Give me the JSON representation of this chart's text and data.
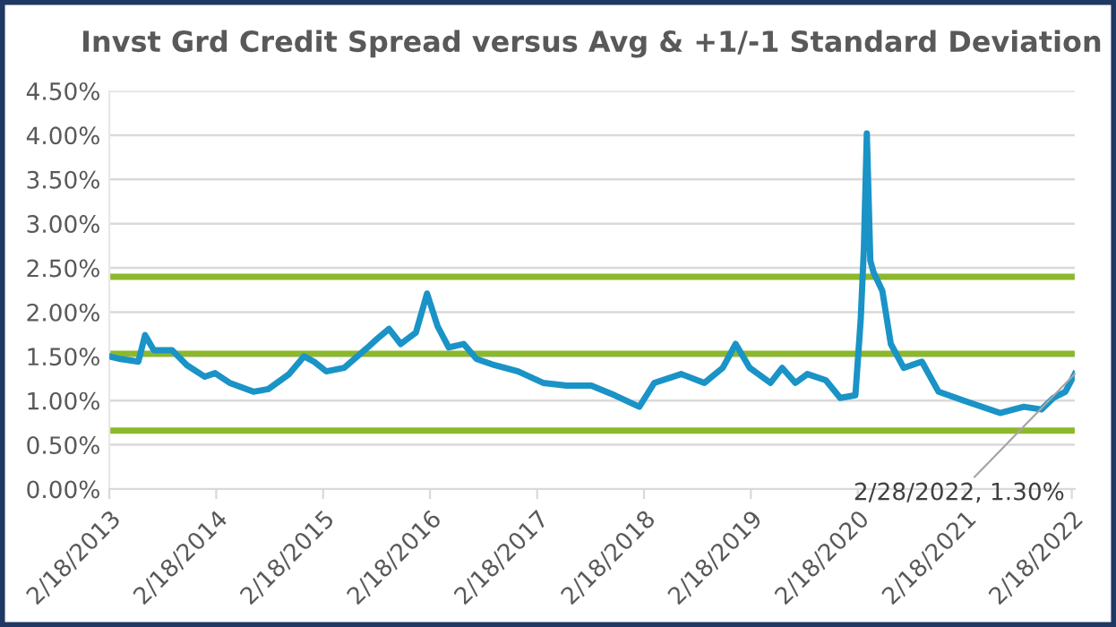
{
  "chart_data": {
    "type": "line",
    "title": "Invst Grd Credit Spread versus Avg & +1/-1 Standard Deviation",
    "x": [
      "2013-02-18",
      "2013-03-28",
      "2013-05-28",
      "2013-06-20",
      "2013-07-20",
      "2013-09-20",
      "2013-11-10",
      "2014-01-10",
      "2014-02-14",
      "2014-04-05",
      "2014-06-25",
      "2014-08-15",
      "2014-10-25",
      "2014-12-15",
      "2015-01-18",
      "2015-03-01",
      "2015-05-01",
      "2015-07-20",
      "2015-08-22",
      "2015-10-01",
      "2015-11-10",
      "2016-01-01",
      "2016-02-08",
      "2016-03-15",
      "2016-04-22",
      "2016-06-12",
      "2016-07-26",
      "2016-09-26",
      "2016-12-15",
      "2017-03-10",
      "2017-05-30",
      "2017-08-22",
      "2017-11-10",
      "2018-02-02",
      "2018-03-25",
      "2018-06-25",
      "2018-09-12",
      "2018-11-14",
      "2018-12-28",
      "2019-02-14",
      "2019-04-26",
      "2019-06-05",
      "2019-07-20",
      "2019-08-30",
      "2019-11-01",
      "2019-12-20",
      "2020-02-10",
      "2020-02-28",
      "2020-03-10",
      "2020-03-20",
      "2020-04-01",
      "2020-04-12",
      "2020-05-12",
      "2020-06-10",
      "2020-07-24",
      "2020-09-24",
      "2020-11-20",
      "2021-02-14",
      "2021-06-18",
      "2021-09-07",
      "2021-11-07",
      "2021-12-17",
      "2022-01-27",
      "2022-02-28"
    ],
    "series": [
      {
        "color": "#1a93c6",
        "values": [
          1.5,
          1.47,
          1.44,
          1.74,
          1.57,
          1.57,
          1.4,
          1.27,
          1.31,
          1.2,
          1.1,
          1.13,
          1.3,
          1.5,
          1.44,
          1.33,
          1.37,
          1.6,
          1.7,
          1.81,
          1.64,
          1.77,
          2.21,
          1.84,
          1.6,
          1.64,
          1.47,
          1.4,
          1.33,
          1.2,
          1.17,
          1.17,
          1.06,
          0.93,
          1.2,
          1.3,
          1.2,
          1.37,
          1.64,
          1.37,
          1.2,
          1.37,
          1.2,
          1.3,
          1.23,
          1.03,
          1.06,
          1.91,
          2.72,
          4.02,
          2.58,
          2.45,
          2.24,
          1.64,
          1.37,
          1.44,
          1.1,
          1.0,
          0.86,
          0.93,
          0.9,
          1.03,
          1.1,
          1.3
        ]
      }
    ],
    "ref_lines": [
      {
        "axis": "y",
        "value": 2.4,
        "color": "#8cb82b"
      },
      {
        "axis": "y",
        "value": 1.53,
        "color": "#8cb82b"
      },
      {
        "axis": "y",
        "value": 0.66,
        "color": "#8cb82b"
      }
    ],
    "annotations": [
      {
        "text": "2/28/2022, 1.30%",
        "x": "2022-02-28",
        "y": 1.3
      }
    ],
    "xlim": [
      "2013-02-18",
      "2022-02-28"
    ],
    "xticks": [
      {
        "value": "2013-02-18",
        "label": "2/18/2013"
      },
      {
        "value": "2014-02-18",
        "label": "2/18/2014"
      },
      {
        "value": "2015-02-18",
        "label": "2/18/2015"
      },
      {
        "value": "2016-02-18",
        "label": "2/18/2016"
      },
      {
        "value": "2017-02-18",
        "label": "2/18/2017"
      },
      {
        "value": "2018-02-18",
        "label": "2/18/2018"
      },
      {
        "value": "2019-02-18",
        "label": "2/18/2019"
      },
      {
        "value": "2020-02-18",
        "label": "2/18/2020"
      },
      {
        "value": "2021-02-18",
        "label": "2/18/2021"
      },
      {
        "value": "2022-02-18",
        "label": "2/18/2022"
      }
    ],
    "ylim": [
      0,
      4.5
    ],
    "yticks": [
      {
        "value": 0,
        "label": "0.00%"
      },
      {
        "value": 0.5,
        "label": "0.50%"
      },
      {
        "value": 1,
        "label": "1.00%"
      },
      {
        "value": 1.5,
        "label": "1.50%"
      },
      {
        "value": 2,
        "label": "2.00%"
      },
      {
        "value": 2.5,
        "label": "2.50%"
      },
      {
        "value": 3,
        "label": "3.00%"
      },
      {
        "value": 3.5,
        "label": "3.50%"
      },
      {
        "value": 4,
        "label": "4.00%"
      },
      {
        "value": 4.5,
        "label": "4.50%"
      }
    ],
    "grid": "y",
    "legend": false,
    "marker": "none",
    "line_style": "solid"
  }
}
